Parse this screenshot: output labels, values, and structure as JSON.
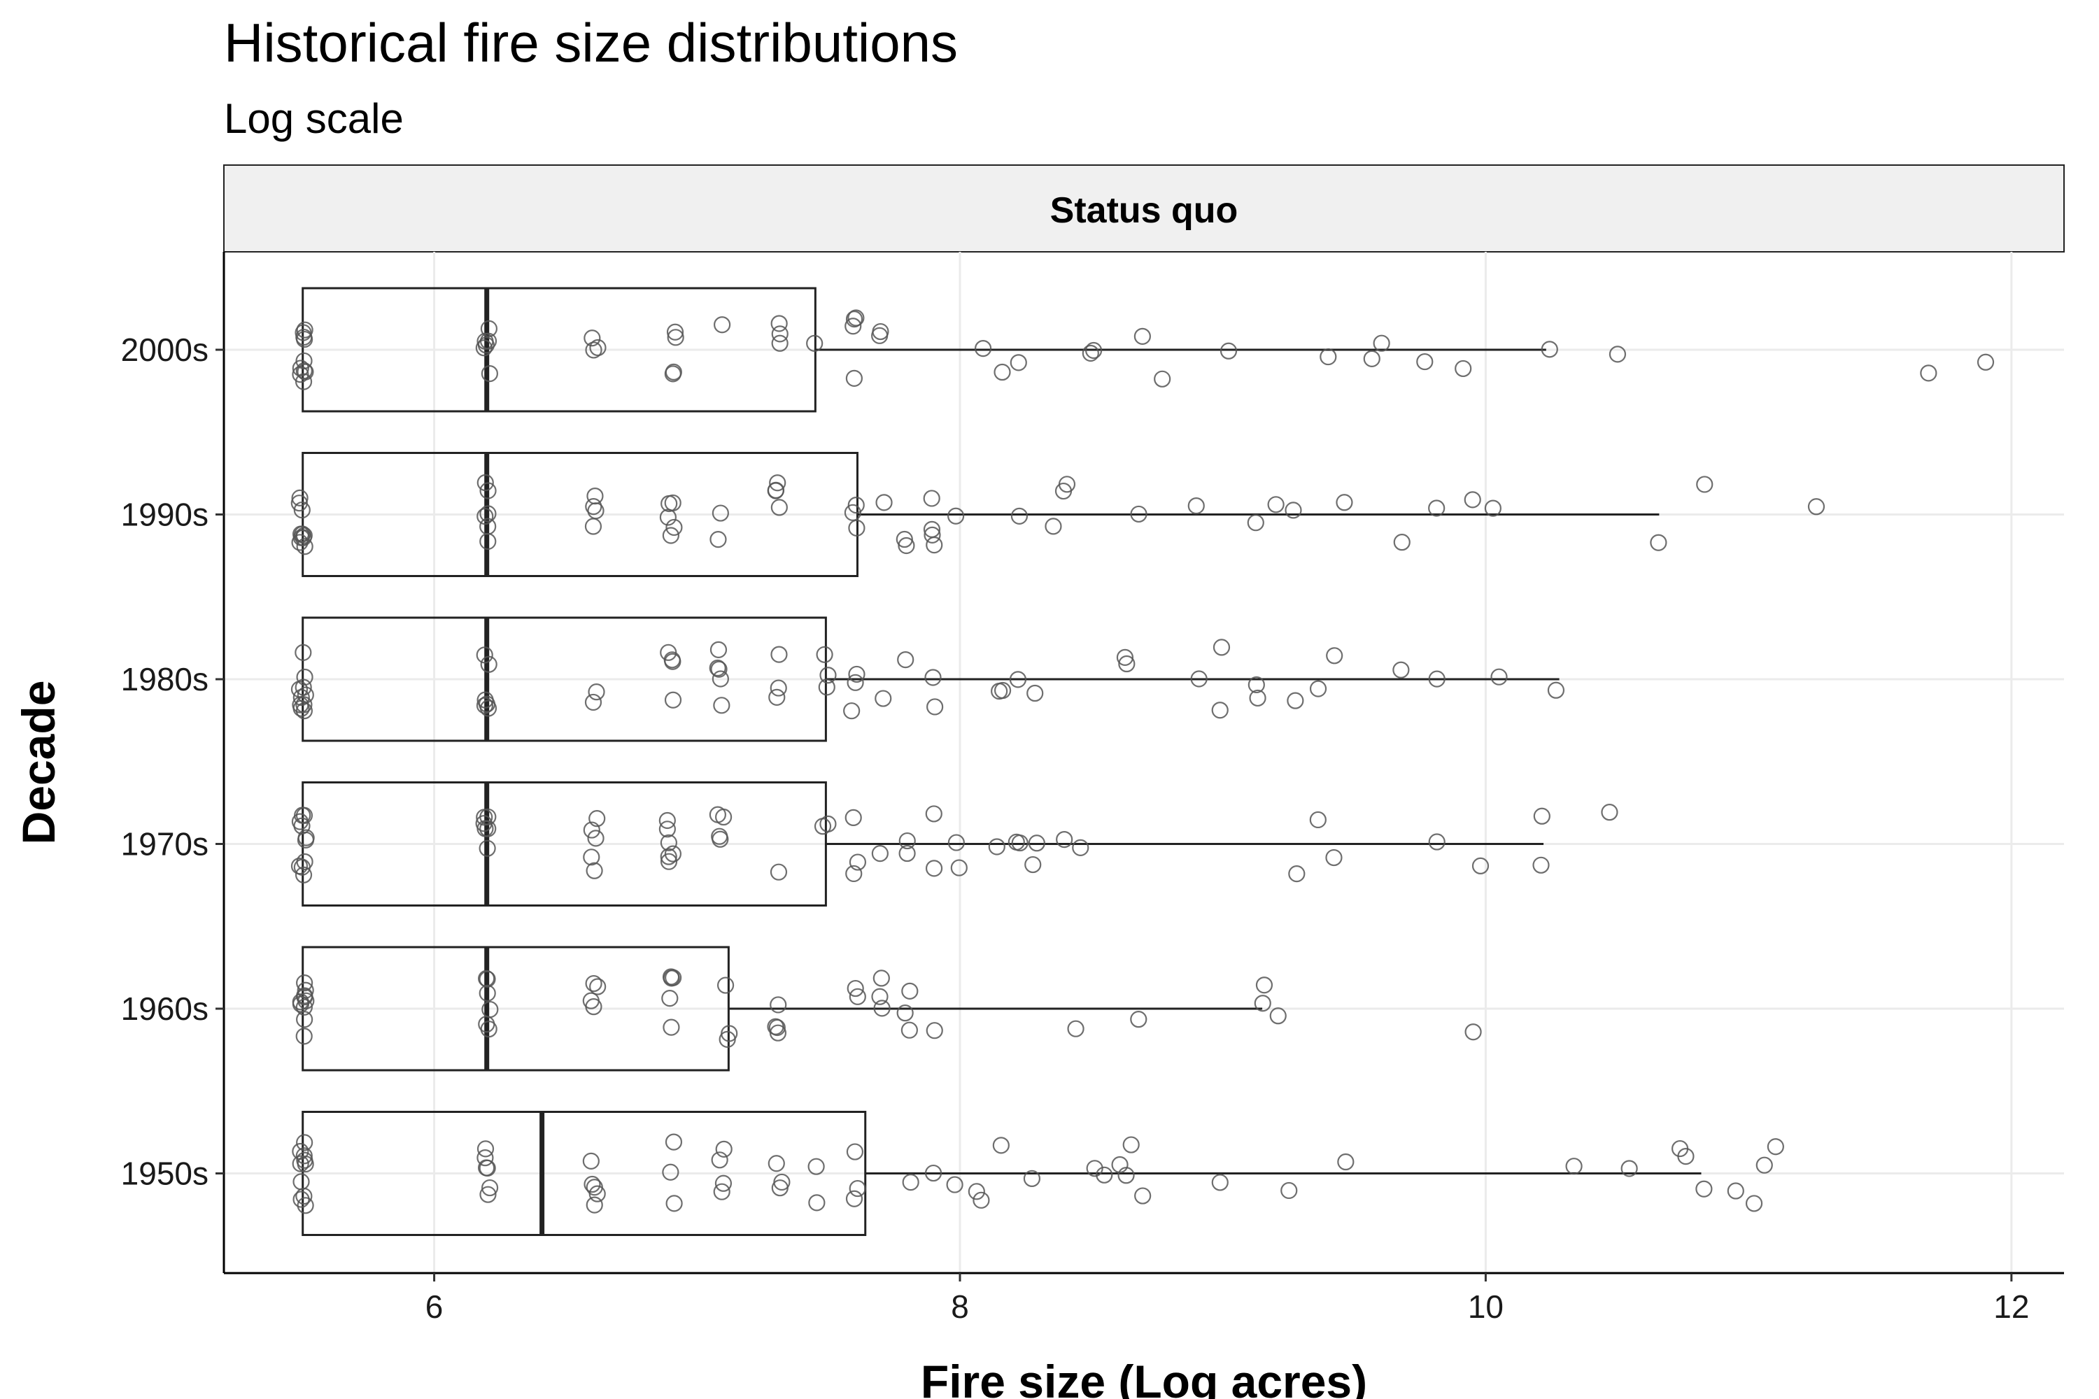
{
  "chart_data": {
    "type": "boxplot",
    "orientation": "horizontal",
    "title": "Historical fire size distributions",
    "subtitle": "Log scale",
    "facet_label": "Status quo",
    "xlabel": "Fire size (Log acres)",
    "ylabel": "Decade",
    "xlim": [
      5.2,
      12.2
    ],
    "x_ticks": [
      6,
      8,
      10,
      12
    ],
    "grid": true,
    "categories": [
      "2000s",
      "1990s",
      "1980s",
      "1970s",
      "1960s",
      "1950s"
    ],
    "boxes": [
      {
        "category": "2000s",
        "q1": 5.5,
        "median": 6.2,
        "q3": 7.45,
        "whisker_low": 5.5,
        "whisker_high": 10.23
      },
      {
        "category": "1990s",
        "q1": 5.5,
        "median": 6.2,
        "q3": 7.61,
        "whisker_low": 5.5,
        "whisker_high": 10.66
      },
      {
        "category": "1980s",
        "q1": 5.5,
        "median": 6.2,
        "q3": 7.49,
        "whisker_low": 5.5,
        "whisker_high": 10.28
      },
      {
        "category": "1970s",
        "q1": 5.5,
        "median": 6.2,
        "q3": 7.49,
        "whisker_low": 5.5,
        "whisker_high": 10.22
      },
      {
        "category": "1960s",
        "q1": 5.5,
        "median": 6.2,
        "q3": 7.12,
        "whisker_low": 5.5,
        "whisker_high": 9.15
      },
      {
        "category": "1950s",
        "q1": 5.5,
        "median": 6.41,
        "q3": 7.64,
        "whisker_low": 5.5,
        "whisker_high": 10.82
      }
    ],
    "points": [
      {
        "category": "2000s",
        "values": [
          5.5,
          5.5,
          5.5,
          5.5,
          5.5,
          5.5,
          5.5,
          5.5,
          5.5,
          5.5,
          6.2,
          6.2,
          6.2,
          6.2,
          6.2,
          6.2,
          6.61,
          6.61,
          6.61,
          6.91,
          6.91,
          6.91,
          6.91,
          7.09,
          7.31,
          7.31,
          7.31,
          7.45,
          7.6,
          7.6,
          7.6,
          7.6,
          7.7,
          7.7,
          8.08,
          8.16,
          8.22,
          8.51,
          8.51,
          8.69,
          8.77,
          9.03,
          9.39,
          9.58,
          9.6,
          9.76,
          9.92,
          10.23,
          10.51,
          11.68,
          11.9
        ]
      },
      {
        "category": "1990s",
        "values": [
          5.5,
          5.5,
          5.5,
          5.5,
          5.5,
          5.5,
          5.5,
          5.5,
          5.5,
          5.5,
          6.2,
          6.2,
          6.2,
          6.2,
          6.2,
          6.2,
          6.61,
          6.61,
          6.61,
          6.61,
          6.9,
          6.9,
          6.9,
          6.9,
          6.9,
          7.09,
          7.09,
          7.31,
          7.31,
          7.31,
          7.31,
          7.6,
          7.6,
          7.6,
          7.7,
          7.8,
          7.8,
          7.9,
          7.9,
          7.9,
          7.9,
          7.99,
          8.22,
          8.35,
          8.4,
          8.4,
          8.69,
          8.9,
          9.12,
          9.2,
          9.27,
          9.46,
          9.67,
          9.81,
          9.94,
          10.04,
          10.66,
          10.82,
          11.26
        ]
      },
      {
        "category": "1980s",
        "values": [
          5.5,
          5.5,
          5.5,
          5.5,
          5.5,
          5.5,
          5.5,
          5.5,
          5.5,
          5.5,
          6.2,
          6.2,
          6.2,
          6.2,
          6.2,
          6.2,
          6.61,
          6.61,
          6.9,
          6.9,
          6.9,
          6.9,
          7.09,
          7.09,
          7.09,
          7.09,
          7.09,
          7.31,
          7.31,
          7.31,
          7.49,
          7.49,
          7.49,
          7.6,
          7.6,
          7.6,
          7.7,
          7.8,
          7.9,
          7.9,
          8.15,
          8.15,
          8.22,
          8.28,
          8.64,
          8.64,
          8.9,
          9.0,
          9.0,
          9.12,
          9.12,
          9.27,
          9.35,
          9.42,
          9.67,
          9.81,
          10.04,
          10.28
        ]
      },
      {
        "category": "1970s",
        "values": [
          5.5,
          5.5,
          5.5,
          5.5,
          5.5,
          5.5,
          5.5,
          5.5,
          5.5,
          5.5,
          6.2,
          6.2,
          6.2,
          6.2,
          6.2,
          6.2,
          6.61,
          6.61,
          6.61,
          6.61,
          6.61,
          6.9,
          6.9,
          6.9,
          6.9,
          6.9,
          6.9,
          7.09,
          7.09,
          7.09,
          7.09,
          7.31,
          7.49,
          7.49,
          7.6,
          7.6,
          7.6,
          7.7,
          7.8,
          7.8,
          7.9,
          7.9,
          7.99,
          7.99,
          8.15,
          8.22,
          8.22,
          8.28,
          8.28,
          8.4,
          8.45,
          9.27,
          9.35,
          9.42,
          9.82,
          9.99,
          10.22,
          10.22,
          10.48
        ]
      },
      {
        "category": "1960s",
        "values": [
          5.5,
          5.5,
          5.5,
          5.5,
          5.5,
          5.5,
          5.5,
          5.5,
          5.5,
          5.5,
          6.2,
          6.2,
          6.2,
          6.2,
          6.2,
          6.2,
          6.61,
          6.61,
          6.61,
          6.61,
          6.9,
          6.9,
          6.9,
          6.9,
          6.9,
          7.12,
          7.12,
          7.12,
          7.31,
          7.31,
          7.31,
          7.31,
          7.6,
          7.6,
          7.7,
          7.7,
          7.7,
          7.8,
          7.8,
          7.8,
          7.9,
          8.45,
          8.69,
          9.15,
          9.15,
          9.2,
          9.96
        ]
      },
      {
        "category": "1950s",
        "values": [
          5.5,
          5.5,
          5.5,
          5.5,
          5.5,
          5.5,
          5.5,
          5.5,
          5.5,
          5.5,
          6.2,
          6.2,
          6.2,
          6.2,
          6.2,
          6.2,
          6.61,
          6.61,
          6.61,
          6.61,
          6.61,
          6.9,
          6.9,
          6.9,
          7.09,
          7.09,
          7.09,
          7.09,
          7.31,
          7.31,
          7.31,
          7.45,
          7.45,
          7.6,
          7.6,
          7.6,
          7.8,
          7.9,
          7.99,
          8.07,
          8.07,
          8.15,
          8.28,
          8.51,
          8.56,
          8.61,
          8.64,
          8.64,
          8.69,
          9.0,
          9.24,
          9.46,
          10.34,
          10.55,
          10.73,
          10.75,
          10.82,
          10.95,
          11.02,
          11.05,
          11.11
        ]
      }
    ]
  },
  "colors": {
    "background": "#ffffff",
    "panel_border": "#000000",
    "strip_fill": "#f0f0f0",
    "grid": "#ebebeb",
    "box_stroke": "#222222",
    "point_stroke": "#555555"
  }
}
